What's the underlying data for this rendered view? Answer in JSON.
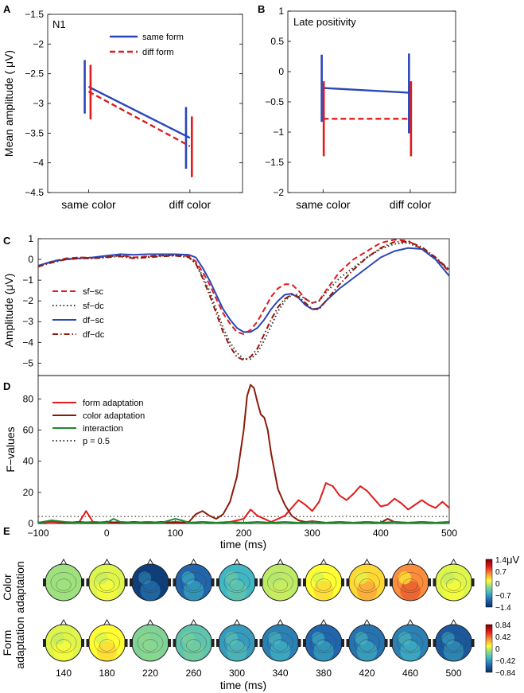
{
  "panel_labels": {
    "a": "A",
    "b": "B",
    "c": "C",
    "d": "D",
    "e": "E"
  },
  "chart_data": [
    {
      "id": "A",
      "type": "line",
      "title": "N1",
      "categories": [
        "same color",
        "diff color"
      ],
      "ylabel": "Mean amplitude ( μV)",
      "ylim": [
        -4.5,
        -1.5
      ],
      "yticks": [
        -1.5,
        -2,
        -2.5,
        -3,
        -3.5,
        -4,
        -4.5
      ],
      "ytick_labels": [
        "−1.5",
        "−2",
        "−2.5",
        "−3",
        "−3.5",
        "−4",
        "−4.5"
      ],
      "legend": [
        {
          "name": "same form",
          "color": "#2a46b8",
          "dash": "solid"
        },
        {
          "name": "diff form",
          "color": "#e31a1c",
          "dash": "dashed"
        }
      ],
      "series": [
        {
          "name": "same form",
          "color": "#2a46b8",
          "dash": "solid",
          "values": [
            -2.72,
            -3.58
          ],
          "err_low": [
            -3.17,
            -4.1
          ],
          "err_high": [
            -2.27,
            -3.06
          ],
          "err_offset": [
            -0.2,
            -0.2
          ]
        },
        {
          "name": "diff form",
          "color": "#e31a1c",
          "dash": "dashed",
          "values": [
            -2.8,
            -3.72
          ],
          "err_low": [
            -3.27,
            -4.24
          ],
          "err_high": [
            -2.35,
            -3.22
          ],
          "err_offset": [
            0.1,
            0.1
          ]
        }
      ]
    },
    {
      "id": "B",
      "type": "line",
      "title": "Late positivity",
      "categories": [
        "same color",
        "diff color"
      ],
      "ylim": [
        -2,
        1
      ],
      "yticks": [
        1,
        0.5,
        0,
        -0.5,
        -1,
        -1.5,
        -2
      ],
      "ytick_labels": [
        "1",
        "0.5",
        "0",
        "−0.5",
        "−1",
        "−1.5",
        "−2"
      ],
      "series": [
        {
          "name": "same form",
          "color": "#2a46b8",
          "dash": "solid",
          "values": [
            -0.27,
            -0.35
          ],
          "err_low": [
            -0.83,
            -1.02
          ],
          "err_high": [
            0.28,
            0.3
          ],
          "err_offset": [
            -0.08,
            -0.08
          ]
        },
        {
          "name": "diff form",
          "color": "#e31a1c",
          "dash": "dashed",
          "values": [
            -0.78,
            -0.78
          ],
          "err_low": [
            -1.4,
            -1.4
          ],
          "err_high": [
            -0.16,
            -0.16
          ],
          "err_offset": [
            0.04,
            0.04
          ]
        }
      ]
    },
    {
      "id": "C",
      "type": "line",
      "ylabel": "Amplitude (μV)",
      "xlim": [
        -100,
        500
      ],
      "ylim": [
        -5.6,
        1
      ],
      "yticks": [
        1,
        0,
        -1,
        -2,
        -3,
        -4,
        -5
      ],
      "ytick_labels": [
        "1",
        "0",
        "−1",
        "−2",
        "−3",
        "−4",
        "−5"
      ],
      "x": [
        -100,
        -80,
        -60,
        -40,
        -20,
        0,
        20,
        40,
        60,
        80,
        100,
        120,
        130,
        140,
        150,
        160,
        170,
        180,
        190,
        200,
        210,
        220,
        230,
        240,
        250,
        260,
        270,
        280,
        290,
        300,
        310,
        320,
        340,
        360,
        380,
        400,
        420,
        440,
        460,
        480,
        500
      ],
      "series": [
        {
          "name": "sf−sc",
          "color": "#e31a1c",
          "dash": "dashed",
          "values": [
            -0.35,
            -0.1,
            0.05,
            0.1,
            0.08,
            0.15,
            0.2,
            0.1,
            0.15,
            0.2,
            0.22,
            0.15,
            -0.1,
            -0.6,
            -1.2,
            -1.9,
            -2.6,
            -3.1,
            -3.5,
            -3.6,
            -3.4,
            -3.0,
            -2.4,
            -1.8,
            -1.4,
            -1.2,
            -1.2,
            -1.5,
            -1.9,
            -2.1,
            -2.0,
            -1.5,
            -0.6,
            0.0,
            0.4,
            0.8,
            0.95,
            0.9,
            0.5,
            0.1,
            -0.6
          ]
        },
        {
          "name": "sf−dc",
          "color": "#333333",
          "dash": "dotted",
          "values": [
            -0.3,
            -0.1,
            0.02,
            0.08,
            0.05,
            0.12,
            0.18,
            0.08,
            0.12,
            0.18,
            0.2,
            0.12,
            -0.2,
            -0.8,
            -1.5,
            -2.4,
            -3.3,
            -4.0,
            -4.5,
            -4.8,
            -4.8,
            -4.5,
            -3.9,
            -3.2,
            -2.5,
            -2.0,
            -1.7,
            -1.7,
            -1.9,
            -2.1,
            -2.0,
            -1.6,
            -0.9,
            -0.4,
            0.1,
            0.5,
            0.75,
            0.8,
            0.5,
            0.0,
            -0.5
          ]
        },
        {
          "name": "df−sc",
          "color": "#2a46b8",
          "dash": "solid",
          "values": [
            -0.3,
            -0.1,
            0.0,
            0.05,
            0.1,
            0.18,
            0.25,
            0.22,
            0.25,
            0.25,
            0.25,
            0.22,
            0.1,
            -0.4,
            -1.0,
            -1.7,
            -2.4,
            -2.9,
            -3.3,
            -3.5,
            -3.5,
            -3.3,
            -2.9,
            -2.4,
            -2.0,
            -1.7,
            -1.65,
            -1.85,
            -2.2,
            -2.4,
            -2.35,
            -2.0,
            -1.4,
            -0.9,
            -0.4,
            0.1,
            0.4,
            0.55,
            0.5,
            0.0,
            -0.8
          ]
        },
        {
          "name": "df−dc",
          "color": "#8b1a0a",
          "dash": "dashdot",
          "values": [
            -0.35,
            -0.15,
            0.0,
            0.05,
            0.05,
            0.1,
            0.15,
            0.05,
            0.1,
            0.15,
            0.18,
            0.1,
            -0.2,
            -0.9,
            -1.7,
            -2.6,
            -3.5,
            -4.2,
            -4.7,
            -4.85,
            -4.7,
            -4.3,
            -3.6,
            -2.9,
            -2.3,
            -1.9,
            -1.7,
            -1.8,
            -2.1,
            -2.4,
            -2.4,
            -2.0,
            -1.2,
            -0.5,
            0.1,
            0.55,
            0.85,
            0.85,
            0.6,
            0.1,
            -0.5
          ]
        }
      ]
    },
    {
      "id": "D",
      "type": "line",
      "ylabel": "F−values",
      "xlabel": "time (ms)",
      "xlim": [
        -100,
        500
      ],
      "ylim": [
        0,
        95
      ],
      "yticks": [
        0,
        20,
        40,
        60,
        80
      ],
      "ytick_labels": [
        "0",
        "20",
        "40",
        "60",
        "80"
      ],
      "xticks": [
        -100,
        0,
        100,
        200,
        300,
        400,
        500
      ],
      "xtick_labels": [
        "−100",
        "0",
        "100",
        "200",
        "300",
        "400",
        "500"
      ],
      "threshold": {
        "name": "p = 0.5",
        "value": 4.5,
        "color": "#333333",
        "dash": "dotted"
      },
      "series": [
        {
          "name": "form adaptation",
          "color": "#e31a1c",
          "dash": "solid",
          "x": [
            -100,
            -80,
            -60,
            -40,
            -30,
            -20,
            0,
            20,
            40,
            60,
            80,
            100,
            120,
            140,
            160,
            180,
            200,
            210,
            220,
            240,
            260,
            280,
            290,
            300,
            310,
            320,
            330,
            340,
            350,
            360,
            370,
            380,
            390,
            400,
            410,
            420,
            430,
            440,
            450,
            460,
            470,
            480,
            490,
            500
          ],
          "values": [
            0.5,
            1,
            0.5,
            1,
            8,
            1,
            0.5,
            1,
            0.5,
            1,
            0.5,
            1,
            0.5,
            1,
            0.5,
            1,
            3,
            9,
            5,
            1,
            5,
            15,
            12,
            8,
            14,
            26,
            24,
            18,
            15,
            19,
            24,
            21,
            16,
            11,
            12,
            16,
            13,
            9,
            12,
            15,
            12,
            10,
            14,
            10
          ]
        },
        {
          "name": "color adaptation",
          "color": "#8b1a0a",
          "dash": "solid",
          "x": [
            -100,
            -80,
            -60,
            -40,
            -20,
            0,
            20,
            40,
            60,
            80,
            100,
            120,
            130,
            140,
            150,
            160,
            170,
            180,
            190,
            200,
            205,
            210,
            215,
            220,
            225,
            230,
            235,
            240,
            250,
            260,
            270,
            280,
            290,
            300,
            310,
            320,
            340,
            360,
            380,
            400,
            410,
            420,
            440,
            460,
            480,
            500
          ],
          "values": [
            0.5,
            2,
            0.5,
            1,
            0.5,
            1,
            0.5,
            1,
            0.5,
            1,
            0.5,
            1,
            6,
            8,
            5,
            3,
            6,
            14,
            30,
            60,
            82,
            89,
            87,
            78,
            70,
            68,
            60,
            45,
            22,
            12,
            5,
            2,
            1,
            1.5,
            1,
            0.5,
            1,
            0.5,
            1,
            0.5,
            3,
            1,
            0.5,
            1,
            0.5,
            1
          ]
        },
        {
          "name": "interaction",
          "color": "#1a8a2a",
          "dash": "solid",
          "x": [
            -100,
            -80,
            -60,
            -40,
            -20,
            0,
            10,
            20,
            40,
            60,
            80,
            100,
            110,
            120,
            140,
            160,
            180,
            200,
            220,
            240,
            260,
            280,
            300,
            320,
            340,
            360,
            380,
            400,
            420,
            440,
            460,
            480,
            500
          ],
          "values": [
            0.5,
            2,
            1,
            0.5,
            1,
            0.5,
            3,
            1,
            0.5,
            1,
            0.5,
            3,
            2,
            0.5,
            1,
            0.5,
            1,
            0.5,
            1,
            0.5,
            1,
            0.5,
            1,
            0.5,
            1,
            0.5,
            1,
            0.5,
            1,
            0.5,
            1,
            0.5,
            1
          ]
        }
      ]
    },
    {
      "id": "E",
      "type": "heatmap",
      "xlabel": "time (ms)",
      "times": [
        "140",
        "180",
        "220",
        "260",
        "300",
        "340",
        "380",
        "420",
        "460",
        "500"
      ],
      "rows": [
        {
          "label_line1": "Color",
          "label_line2": "adaptation",
          "unit": "μV",
          "scale": [
            "1.4",
            "0.7",
            "0",
            "−0.7",
            "−1.4"
          ],
          "values": [
            0.0,
            0.2,
            -0.9,
            -0.6,
            -0.3,
            0.1,
            0.3,
            0.4,
            0.6,
            0.2
          ]
        },
        {
          "label_line1": "Form",
          "label_line2": "adaptation",
          "scale": [
            "0.84",
            "0.42",
            "0",
            "−0.42",
            "−0.84"
          ],
          "values": [
            0.2,
            0.3,
            -0.1,
            -0.2,
            -0.4,
            -0.5,
            -0.6,
            -0.55,
            -0.5,
            -0.7
          ]
        }
      ]
    }
  ]
}
